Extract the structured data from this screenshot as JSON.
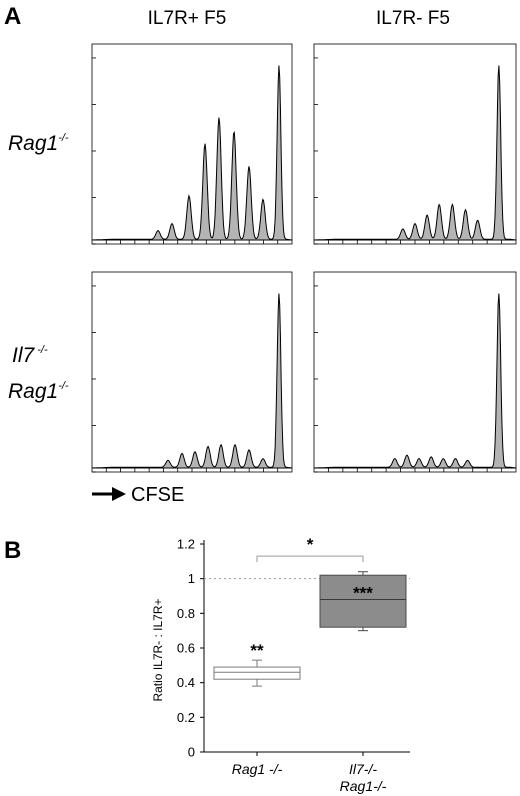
{
  "panel_a_letter": "A",
  "panel_b_letter": "B",
  "col_titles": [
    "IL7R+ F5",
    "IL7R- F5"
  ],
  "rows": [
    {
      "lines": [
        {
          "main": "Rag1",
          "sup": "-/-"
        }
      ]
    },
    {
      "lines": [
        {
          "main": "Il7",
          "sup": " -/-"
        },
        {
          "main": "Rag1",
          "sup": "-/-"
        }
      ]
    }
  ],
  "x_axis_label": "CFSE",
  "chart_data": [
    {
      "type": "area",
      "title": "IL7R+ F5",
      "row": "Rag1-/-",
      "xlabel": "CFSE",
      "description_units": "relative CFSE position 0-1, relative peak height 0-1",
      "peaks": [
        {
          "x": 0.33,
          "h": 0.05
        },
        {
          "x": 0.4,
          "h": 0.09
        },
        {
          "x": 0.485,
          "h": 0.25
        },
        {
          "x": 0.565,
          "h": 0.55
        },
        {
          "x": 0.635,
          "h": 0.7
        },
        {
          "x": 0.71,
          "h": 0.62
        },
        {
          "x": 0.785,
          "h": 0.42
        },
        {
          "x": 0.855,
          "h": 0.23
        },
        {
          "x": 0.935,
          "h": 1.0
        }
      ]
    },
    {
      "type": "area",
      "title": "IL7R- F5",
      "row": "Rag1-/-",
      "xlabel": "CFSE",
      "peaks": [
        {
          "x": 0.44,
          "h": 0.06
        },
        {
          "x": 0.5,
          "h": 0.09
        },
        {
          "x": 0.56,
          "h": 0.14
        },
        {
          "x": 0.62,
          "h": 0.2
        },
        {
          "x": 0.685,
          "h": 0.2
        },
        {
          "x": 0.75,
          "h": 0.17
        },
        {
          "x": 0.81,
          "h": 0.11
        },
        {
          "x": 0.915,
          "h": 1.0
        }
      ]
    },
    {
      "type": "area",
      "title": "IL7R+ F5",
      "row": "Il7-/- Rag1-/-",
      "xlabel": "CFSE",
      "peaks": [
        {
          "x": 0.38,
          "h": 0.04
        },
        {
          "x": 0.45,
          "h": 0.08
        },
        {
          "x": 0.515,
          "h": 0.09
        },
        {
          "x": 0.58,
          "h": 0.12
        },
        {
          "x": 0.645,
          "h": 0.13
        },
        {
          "x": 0.715,
          "h": 0.13
        },
        {
          "x": 0.785,
          "h": 0.1
        },
        {
          "x": 0.855,
          "h": 0.05
        },
        {
          "x": 0.935,
          "h": 1.0
        }
      ]
    },
    {
      "type": "area",
      "title": "IL7R- F5",
      "row": "Il7-/- Rag1-/-",
      "xlabel": "CFSE",
      "peaks": [
        {
          "x": 0.4,
          "h": 0.05
        },
        {
          "x": 0.46,
          "h": 0.07
        },
        {
          "x": 0.52,
          "h": 0.05
        },
        {
          "x": 0.58,
          "h": 0.06
        },
        {
          "x": 0.64,
          "h": 0.05
        },
        {
          "x": 0.7,
          "h": 0.05
        },
        {
          "x": 0.76,
          "h": 0.04
        },
        {
          "x": 0.915,
          "h": 1.0
        }
      ]
    },
    {
      "type": "box",
      "ylabel": "Ratio IL7R- : IL7R+",
      "ylim": [
        0,
        1.2
      ],
      "yticks": [
        0,
        0.2,
        0.4,
        0.6,
        0.8,
        1,
        1.2
      ],
      "ytick_labels": [
        "0",
        "0.2",
        "0.4",
        "0.6",
        "0.8",
        "1",
        "1.2"
      ],
      "reference_line": 1,
      "categories": [
        {
          "lines": [
            "Rag1 -/-"
          ]
        },
        {
          "lines": [
            "Il7-/-",
            "Rag1-/-"
          ]
        }
      ],
      "boxes": [
        {
          "whisker_low": 0.38,
          "q1": 0.42,
          "median": 0.46,
          "q3": 0.49,
          "whisker_high": 0.53,
          "color": "#ffffff",
          "significance": "**"
        },
        {
          "whisker_low": 0.7,
          "q1": 0.72,
          "median": 0.88,
          "q3": 1.02,
          "whisker_high": 1.04,
          "color": "#8c8c8c",
          "significance": "***"
        }
      ],
      "comparison": {
        "label": "*",
        "y": 1.13
      }
    }
  ]
}
